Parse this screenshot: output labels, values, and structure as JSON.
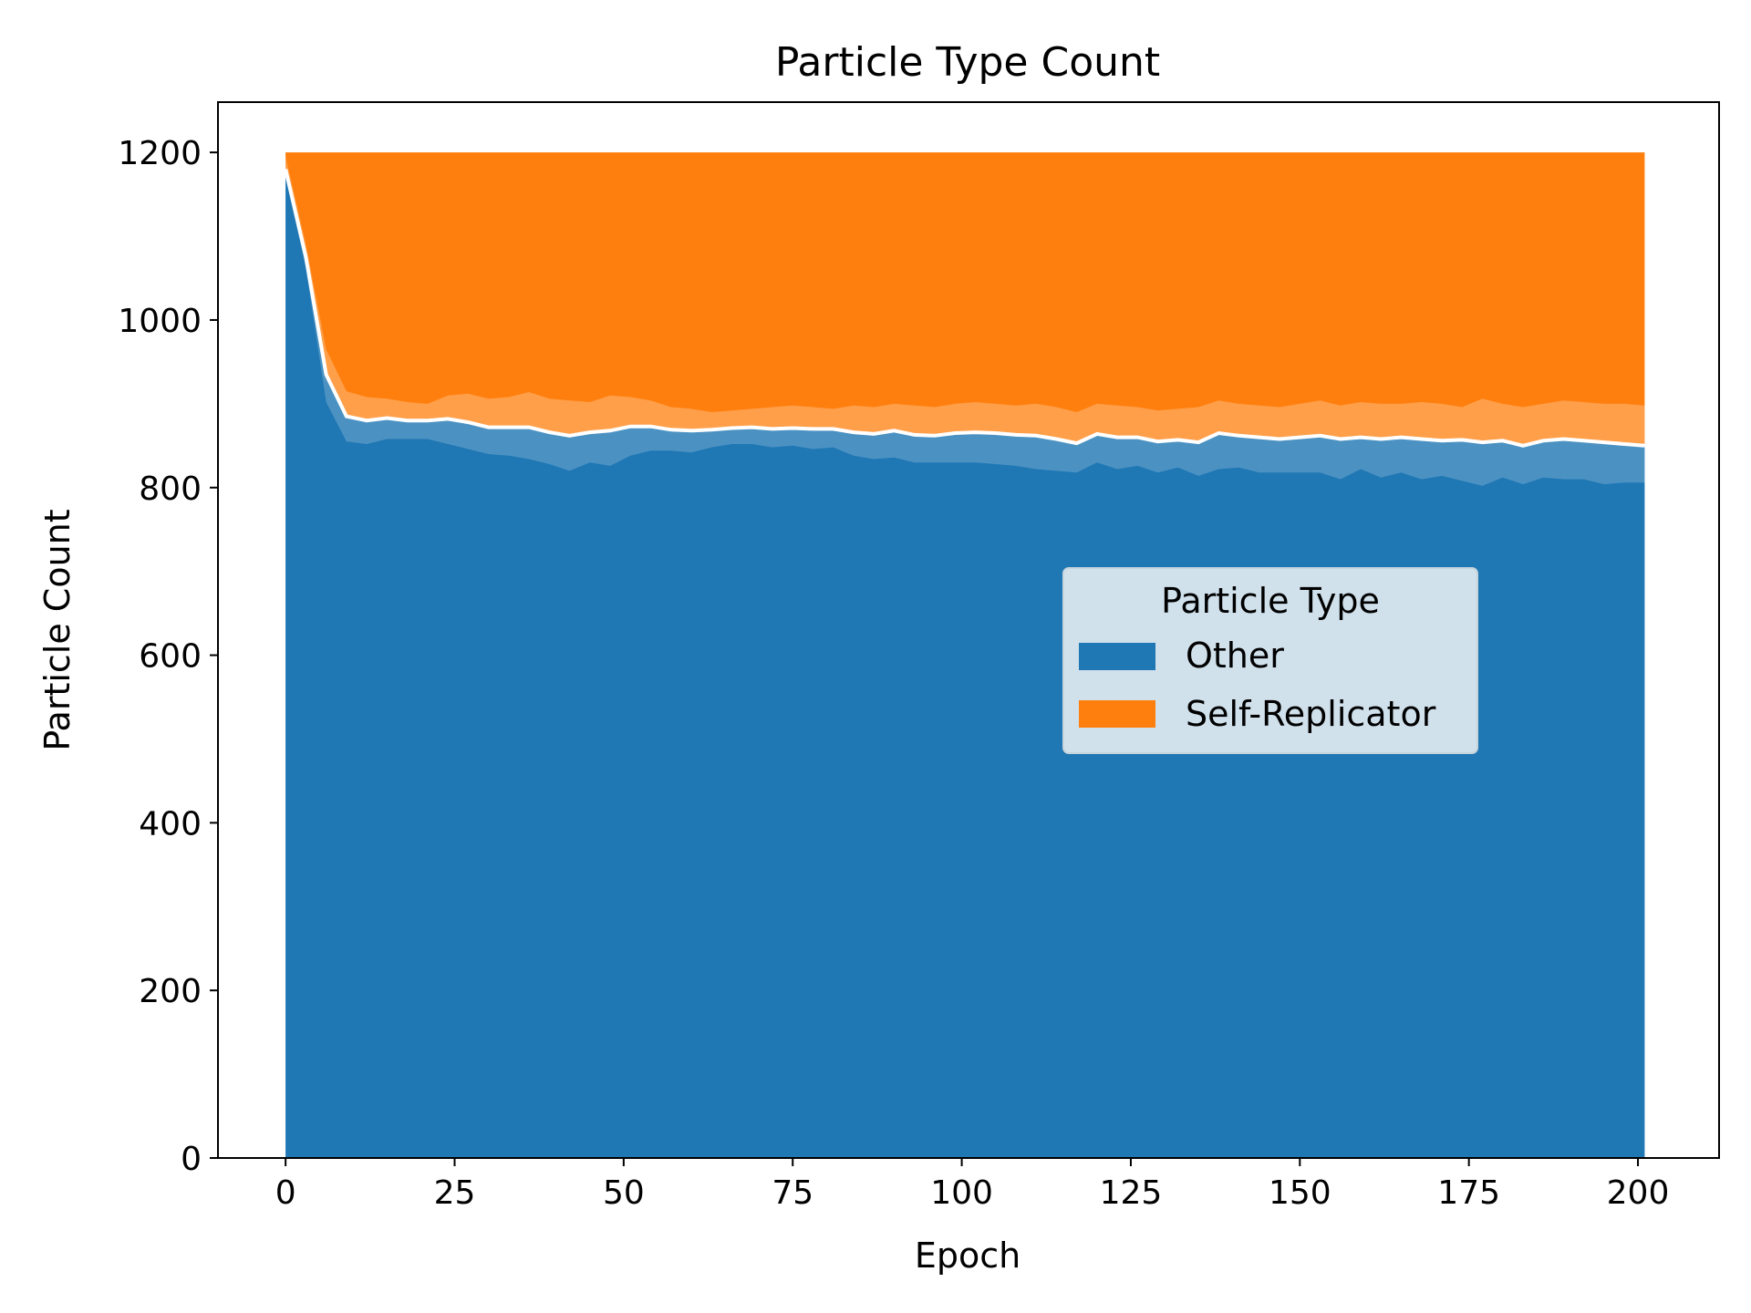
{
  "chart_data": {
    "type": "area",
    "stacked": true,
    "title": "Particle Type Count",
    "xlabel": "Epoch",
    "ylabel": "Particle Count",
    "xlim": [
      -10,
      212
    ],
    "ylim": [
      0,
      1260
    ],
    "xticks": [
      0,
      25,
      50,
      75,
      100,
      125,
      150,
      175,
      200
    ],
    "yticks": [
      0,
      200,
      400,
      600,
      800,
      1000,
      1200
    ],
    "grid": false,
    "legend": {
      "title": "Particle Type",
      "placement": "center-right",
      "entries": [
        "Other",
        "Self-Replicator"
      ]
    },
    "colors": {
      "Other": "#1f77b4",
      "Self-Replicator": "#ff7f0e"
    },
    "x": [
      0,
      3,
      6,
      9,
      12,
      15,
      18,
      21,
      24,
      27,
      30,
      33,
      36,
      39,
      42,
      45,
      48,
      51,
      54,
      57,
      60,
      63,
      66,
      69,
      72,
      75,
      78,
      81,
      84,
      87,
      90,
      93,
      96,
      99,
      102,
      105,
      108,
      111,
      114,
      117,
      120,
      123,
      126,
      129,
      132,
      135,
      138,
      141,
      144,
      147,
      150,
      153,
      156,
      159,
      162,
      165,
      168,
      171,
      174,
      177,
      180,
      183,
      186,
      189,
      192,
      195,
      198,
      201
    ],
    "mean_other": [
      1180,
      1075,
      935,
      885,
      880,
      883,
      880,
      880,
      882,
      878,
      872,
      872,
      872,
      866,
      862,
      866,
      868,
      873,
      873,
      869,
      868,
      869,
      871,
      872,
      870,
      871,
      870,
      870,
      866,
      864,
      868,
      863,
      862,
      865,
      866,
      865,
      863,
      862,
      858,
      853,
      864,
      860,
      860,
      855,
      857,
      854,
      865,
      862,
      860,
      858,
      860,
      862,
      858,
      860,
      858,
      860,
      858,
      856,
      857,
      854,
      856,
      850,
      856,
      858,
      856,
      854,
      852,
      850
    ],
    "band_low": [
      1170,
      1062,
      902,
      855,
      852,
      858,
      858,
      858,
      852,
      846,
      840,
      838,
      834,
      828,
      820,
      830,
      826,
      838,
      844,
      844,
      842,
      848,
      852,
      852,
      848,
      850,
      846,
      848,
      838,
      834,
      836,
      830,
      830,
      830,
      830,
      828,
      826,
      822,
      820,
      818,
      830,
      822,
      826,
      818,
      824,
      814,
      822,
      824,
      818,
      818,
      818,
      818,
      810,
      822,
      812,
      818,
      810,
      814,
      808,
      802,
      812,
      804,
      812,
      810,
      810,
      804,
      806,
      806
    ],
    "band_high": [
      1195,
      1090,
      965,
      915,
      908,
      906,
      902,
      900,
      910,
      912,
      906,
      908,
      914,
      906,
      904,
      902,
      910,
      908,
      904,
      896,
      894,
      890,
      892,
      894,
      896,
      898,
      896,
      894,
      898,
      896,
      900,
      898,
      896,
      900,
      902,
      900,
      898,
      900,
      896,
      890,
      900,
      898,
      896,
      892,
      894,
      896,
      904,
      900,
      898,
      896,
      900,
      904,
      898,
      902,
      900,
      900,
      902,
      900,
      896,
      906,
      900,
      896,
      900,
      904,
      902,
      900,
      900,
      898
    ],
    "total": 1200
  }
}
